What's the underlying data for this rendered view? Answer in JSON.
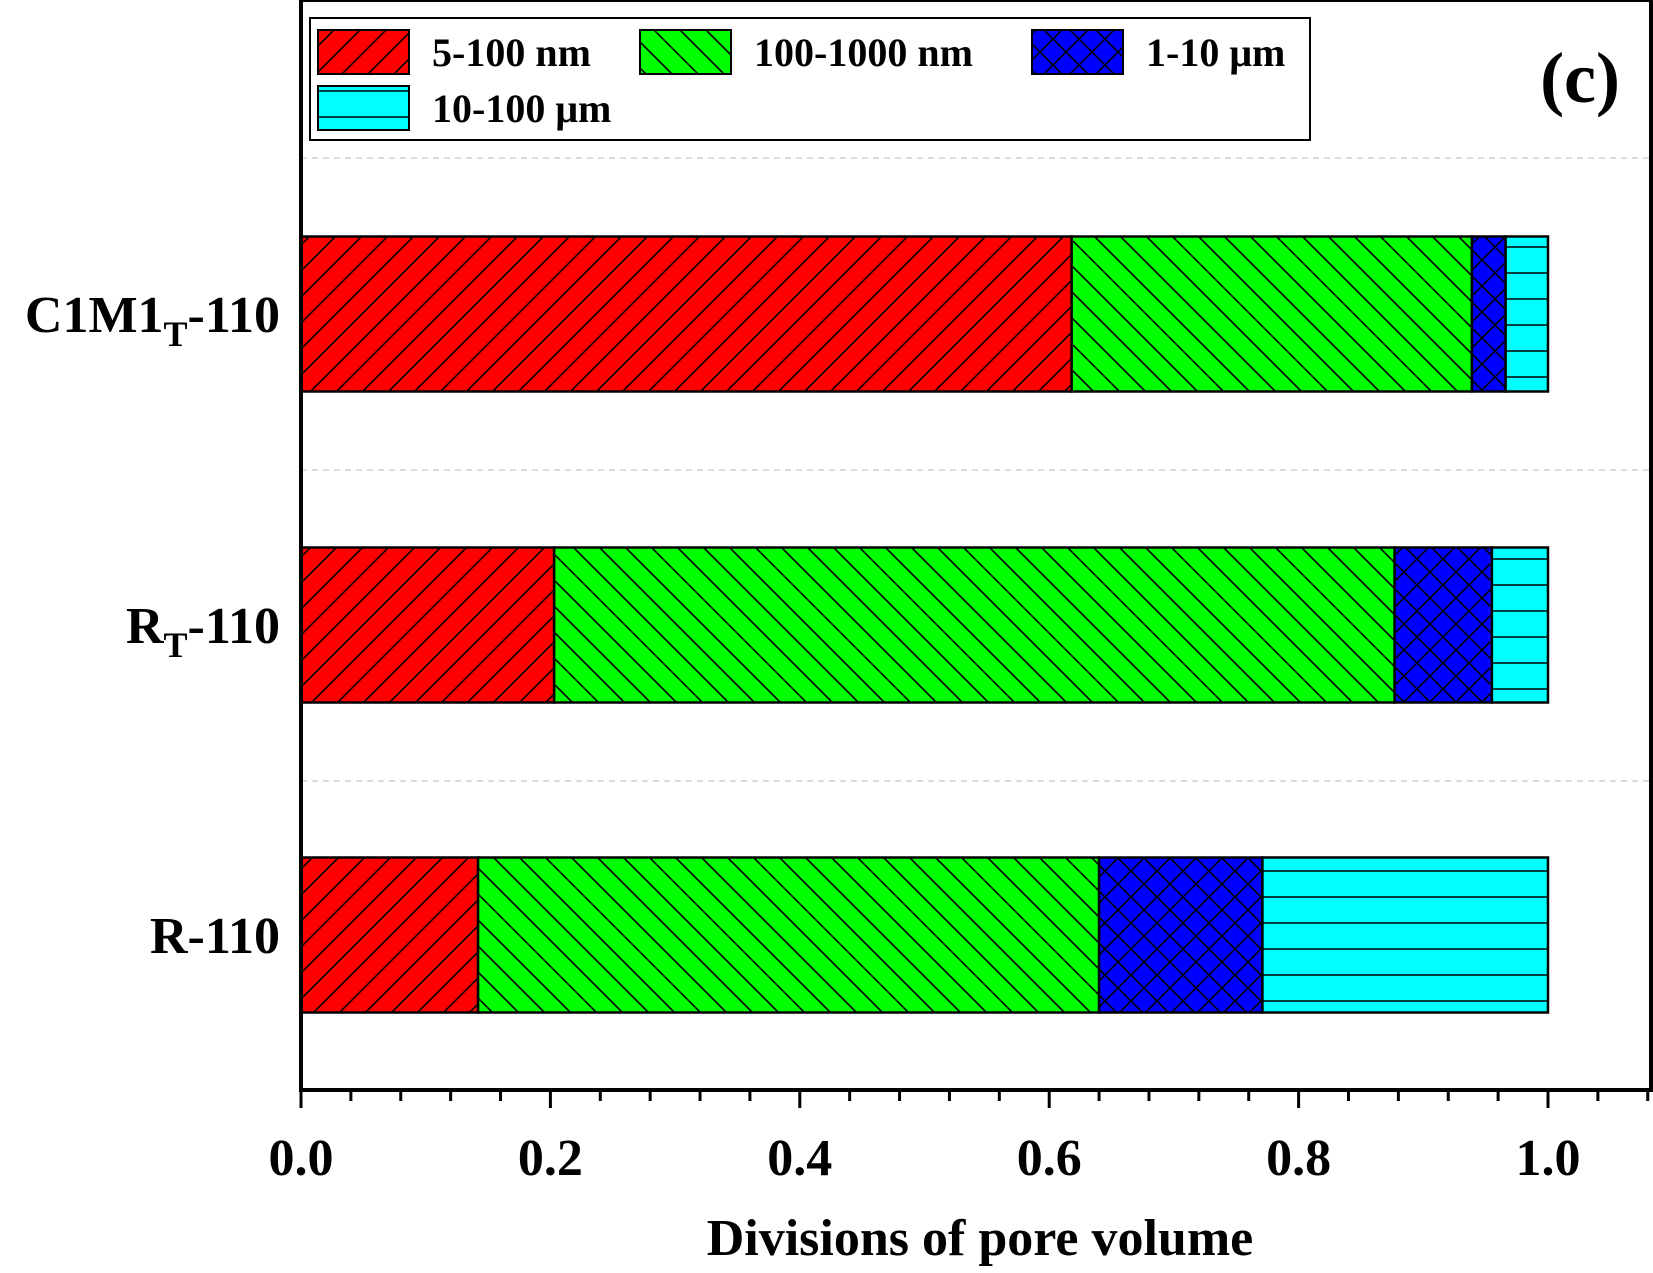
{
  "chart_data": {
    "type": "bar",
    "orientation": "horizontal",
    "stacked": true,
    "panel_label": "(c)",
    "xlabel": "Divisions of pore volume",
    "ylabel": "",
    "xlim": [
      0.0,
      1.08
    ],
    "xticks": [
      "0.0",
      "0.2",
      "0.4",
      "0.6",
      "0.8",
      "1.0"
    ],
    "xtick_values": [
      0.0,
      0.2,
      0.4,
      0.6,
      0.8,
      1.0
    ],
    "categories": [
      {
        "base": "C1M1",
        "sub": "T",
        "suffix": "-110"
      },
      {
        "base": "R",
        "sub": "T",
        "suffix": "-110"
      },
      {
        "base": "R",
        "sub": "",
        "suffix": "-110"
      }
    ],
    "series": [
      {
        "name": "5-100 nm",
        "color": "#ff0000",
        "pattern": "diag-right",
        "values": [
          0.618,
          0.203,
          0.142
        ]
      },
      {
        "name": "100-1000 nm",
        "color": "#00ff00",
        "pattern": "diag-left",
        "values": [
          0.321,
          0.674,
          0.498
        ]
      },
      {
        "name": "1-10 μm",
        "color": "#0000ff",
        "pattern": "cross",
        "values": [
          0.027,
          0.078,
          0.131
        ]
      },
      {
        "name": "10-100 μm",
        "color": "#00ffff",
        "pattern": "horizontal",
        "values": [
          0.034,
          0.045,
          0.229
        ]
      }
    ],
    "grid": "horizontal-dashed",
    "legend_placement": "top-left"
  }
}
